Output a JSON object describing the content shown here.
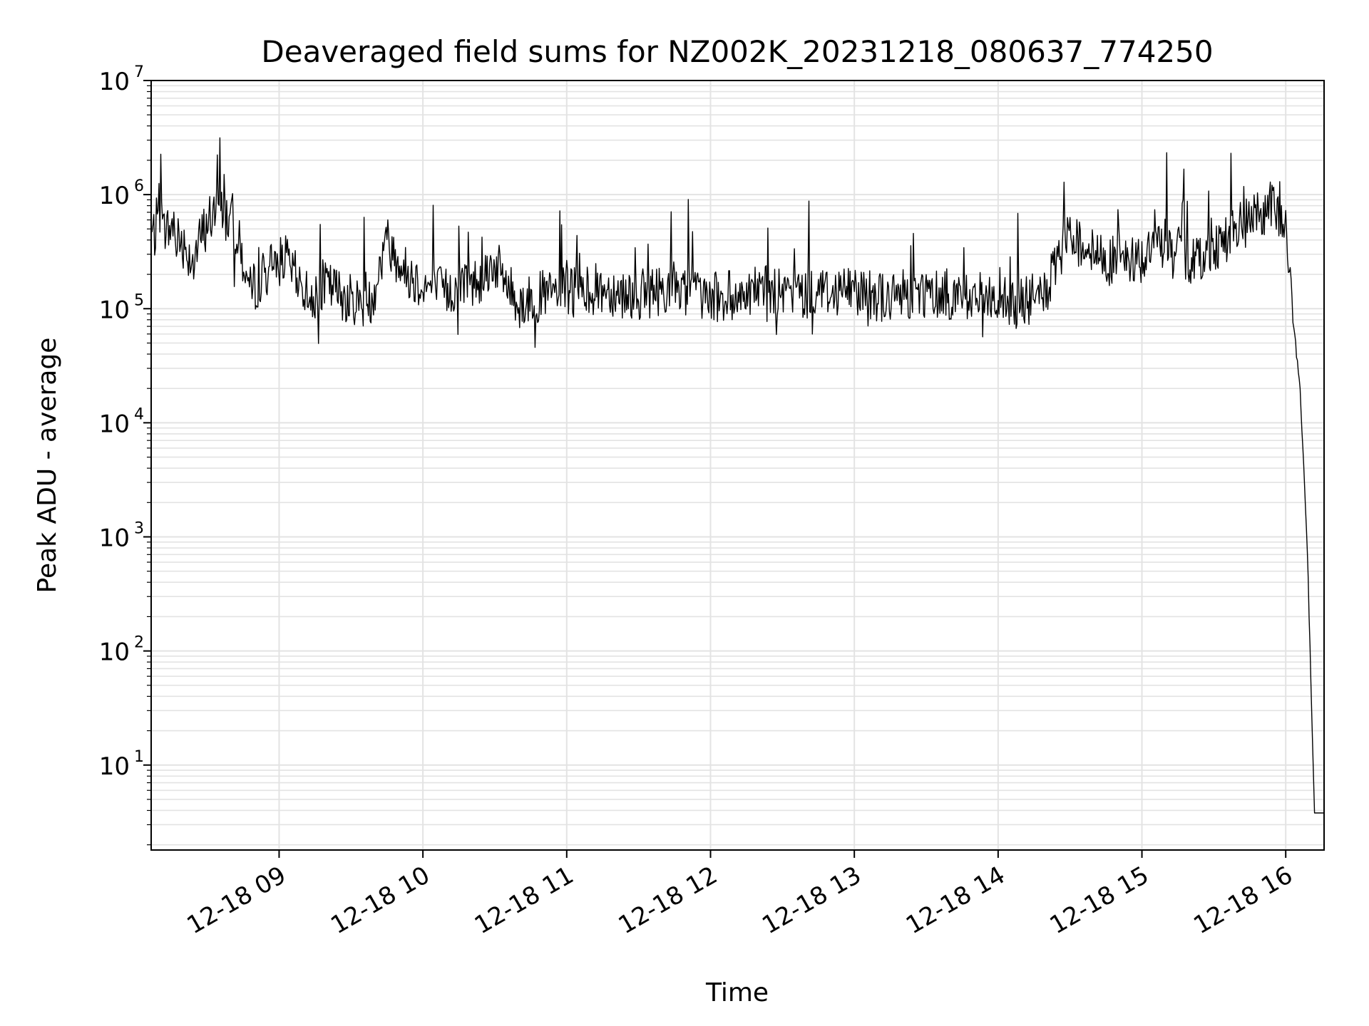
{
  "chart_data": {
    "type": "line",
    "title": "Deaveraged field sums for NZ002K_20231218_080637_774250",
    "xlabel": "Time",
    "ylabel": "Peak ADU - average",
    "yscale": "log",
    "xlim": [
      "2023-12-18 08:06:37",
      "2023-12-18 16:16:00"
    ],
    "ylim": [
      1.8,
      10000000
    ],
    "x_ticks": [
      {
        "value": "2023-12-18 09:00",
        "label": "12-18 09"
      },
      {
        "value": "2023-12-18 10:00",
        "label": "12-18 10"
      },
      {
        "value": "2023-12-18 11:00",
        "label": "12-18 11"
      },
      {
        "value": "2023-12-18 12:00",
        "label": "12-18 12"
      },
      {
        "value": "2023-12-18 13:00",
        "label": "12-18 13"
      },
      {
        "value": "2023-12-18 14:00",
        "label": "12-18 14"
      },
      {
        "value": "2023-12-18 15:00",
        "label": "12-18 15"
      },
      {
        "value": "2023-12-18 16:00",
        "label": "12-18 16"
      }
    ],
    "y_ticks": [
      {
        "value": 10,
        "base": "10",
        "exp": "1"
      },
      {
        "value": 100,
        "base": "10",
        "exp": "2"
      },
      {
        "value": 1000,
        "base": "10",
        "exp": "3"
      },
      {
        "value": 10000,
        "base": "10",
        "exp": "4"
      },
      {
        "value": 100000,
        "base": "10",
        "exp": "5"
      },
      {
        "value": 1000000,
        "base": "10",
        "exp": "6"
      },
      {
        "value": 10000000,
        "base": "10",
        "exp": "7"
      }
    ],
    "grid": true,
    "line_color": "#000000",
    "grid_color": "#e3e3e3",
    "series": [
      {
        "x": [
          "2023-12-18 08:06:37",
          "2023-12-18 08:15",
          "2023-12-18 08:20",
          "2023-12-18 08:24",
          "2023-12-18 08:30",
          "2023-12-18 08:36",
          "2023-12-18 08:42",
          "2023-12-18 08:48",
          "2023-12-18 08:55",
          "2023-12-18 09:02",
          "2023-12-18 09:10",
          "2023-12-18 09:15",
          "2023-12-18 09:20",
          "2023-12-18 09:30",
          "2023-12-18 09:38",
          "2023-12-18 09:45",
          "2023-12-18 09:52",
          "2023-12-18 10:00",
          "2023-12-18 10:10",
          "2023-12-18 10:20",
          "2023-12-18 10:30",
          "2023-12-18 10:40",
          "2023-12-18 10:50",
          "2023-12-18 11:00",
          "2023-12-18 11:15",
          "2023-12-18 11:30",
          "2023-12-18 11:45",
          "2023-12-18 12:00",
          "2023-12-18 12:13",
          "2023-12-18 12:20",
          "2023-12-18 12:30",
          "2023-12-18 12:45",
          "2023-12-18 13:00",
          "2023-12-18 13:15",
          "2023-12-18 13:30",
          "2023-12-18 13:45",
          "2023-12-18 14:00",
          "2023-12-18 14:10",
          "2023-12-18 14:20",
          "2023-12-18 14:30",
          "2023-12-18 14:40",
          "2023-12-18 14:50",
          "2023-12-18 15:00",
          "2023-12-18 15:10",
          "2023-12-18 15:20",
          "2023-12-18 15:30",
          "2023-12-18 15:40",
          "2023-12-18 15:50",
          "2023-12-18 15:55",
          "2023-12-18 16:00",
          "2023-12-18 16:03",
          "2023-12-18 16:06",
          "2023-12-18 16:09",
          "2023-12-18 16:12",
          "2023-12-18 16:16"
        ],
        "y": [
          450000,
          500000,
          380000,
          260000,
          600000,
          750000,
          480000,
          140000,
          220000,
          280000,
          150000,
          130000,
          160000,
          120000,
          110000,
          400000,
          220000,
          160000,
          140000,
          160000,
          250000,
          110000,
          130000,
          140000,
          150000,
          130000,
          160000,
          120000,
          140000,
          150000,
          130000,
          140000,
          150000,
          120000,
          140000,
          130000,
          120000,
          110000,
          140000,
          450000,
          300000,
          250000,
          280000,
          400000,
          250000,
          350000,
          500000,
          700000,
          800000,
          500000,
          80000,
          20000,
          800,
          3.8,
          3.8
        ]
      }
    ]
  }
}
